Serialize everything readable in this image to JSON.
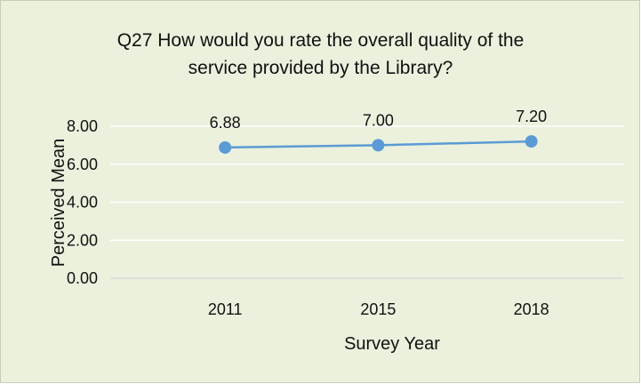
{
  "chart_data": {
    "type": "line",
    "title_lines": [
      "Q27   How would you rate the overall quality of the",
      "service provided by the Library?"
    ],
    "xlabel": "Survey Year",
    "ylabel": "Perceived Mean",
    "categories": [
      "2011",
      "2015",
      "2018"
    ],
    "series": [
      {
        "values": [
          6.88,
          7.0,
          7.2
        ],
        "data_labels": [
          "6.88",
          "7.00",
          "7.20"
        ],
        "color": "#5b9bd5"
      }
    ],
    "ylim": [
      0,
      8
    ],
    "yticks": [
      "0.00",
      "2.00",
      "4.00",
      "6.00",
      "8.00"
    ],
    "ytick_values": [
      0,
      2,
      4,
      6,
      8
    ],
    "grid": true,
    "background_color": "#ebf1dd",
    "grid_color": "#ffffff"
  }
}
